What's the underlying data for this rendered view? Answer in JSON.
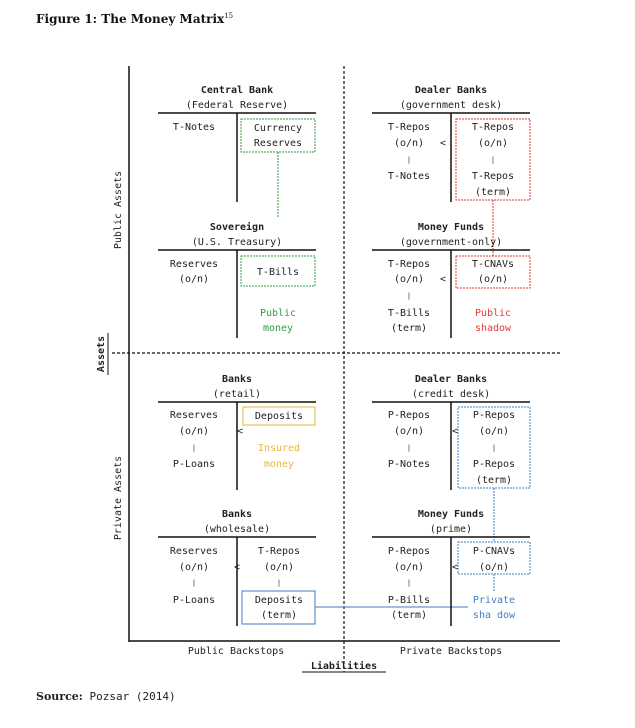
{
  "figure": {
    "title": "Figure 1: The Money Matrix",
    "footnote": "15"
  },
  "axes": {
    "vertical_main": "Assets",
    "public_assets": "Public Assets",
    "private_assets": "Private Assets",
    "horizontal_main": "Liabilities",
    "public_backstops": "Public Backstops",
    "private_backstops": "Private Backstops"
  },
  "boxes": {
    "central_bank": {
      "title": "Central Bank",
      "subtitle": "(Federal Reserve)",
      "left": [
        "T-Notes"
      ],
      "right": [
        "Currency",
        "Reserves"
      ]
    },
    "dealer_gov": {
      "title": "Dealer Banks",
      "subtitle": "(government desk)",
      "left1": [
        "T-Repos",
        "(o/n)"
      ],
      "left2": [
        "T-Notes"
      ],
      "right1": [
        "T-Repos",
        "(o/n)"
      ],
      "right2": [
        "T-Repos",
        "(term)"
      ]
    },
    "sovereign": {
      "title": "Sovereign",
      "subtitle": "(U.S. Treasury)",
      "left": [
        "Reserves",
        "(o/n)"
      ],
      "right": [
        "T-Bills"
      ],
      "label": [
        "Public",
        "money"
      ]
    },
    "mmf_gov": {
      "title": "Money Funds",
      "subtitle": "(government-only)",
      "left1": [
        "T-Repos",
        "(o/n)"
      ],
      "left2": [
        "T-Bills",
        "(term)"
      ],
      "right1": [
        "T-CNAVs",
        "(o/n)"
      ],
      "label": [
        "Public",
        "shadow"
      ]
    },
    "banks_retail": {
      "title": "Banks",
      "subtitle": "(retail)",
      "left1": [
        "Reserves",
        "(o/n)"
      ],
      "left2": [
        "P-Loans"
      ],
      "right1": [
        "Deposits"
      ],
      "label": [
        "Insured",
        "money"
      ]
    },
    "dealer_credit": {
      "title": "Dealer Banks",
      "subtitle": "(credit desk)",
      "left1": [
        "P-Repos",
        "(o/n)"
      ],
      "left2": [
        "P-Notes"
      ],
      "right1": [
        "P-Repos",
        "(o/n)"
      ],
      "right2": [
        "P-Repos",
        "(term)"
      ]
    },
    "banks_wholesale": {
      "title": "Banks",
      "subtitle": "(wholesale)",
      "left1": [
        "Reserves",
        "(o/n)"
      ],
      "left2": [
        "P-Loans"
      ],
      "right1": [
        "T-Repos",
        "(o/n)"
      ],
      "right2": [
        "Deposits",
        "(term)"
      ]
    },
    "mmf_prime": {
      "title": "Money Funds",
      "subtitle": "(prime)",
      "left1": [
        "P-Repos",
        "(o/n)"
      ],
      "left2": [
        "P-Bills",
        "(term)"
      ],
      "right1": [
        "P-CNAVs",
        "(o/n)"
      ],
      "label": [
        "Private",
        "sha dow"
      ]
    }
  },
  "symbols": {
    "lt": "<",
    "tick": "|"
  },
  "colors": {
    "green": "#2e9e45",
    "red": "#e03a3a",
    "gold": "#e8b73a",
    "blue": "#3f7fc4"
  },
  "source": {
    "label": "Source:",
    "text": "Pozsar (2014)"
  }
}
